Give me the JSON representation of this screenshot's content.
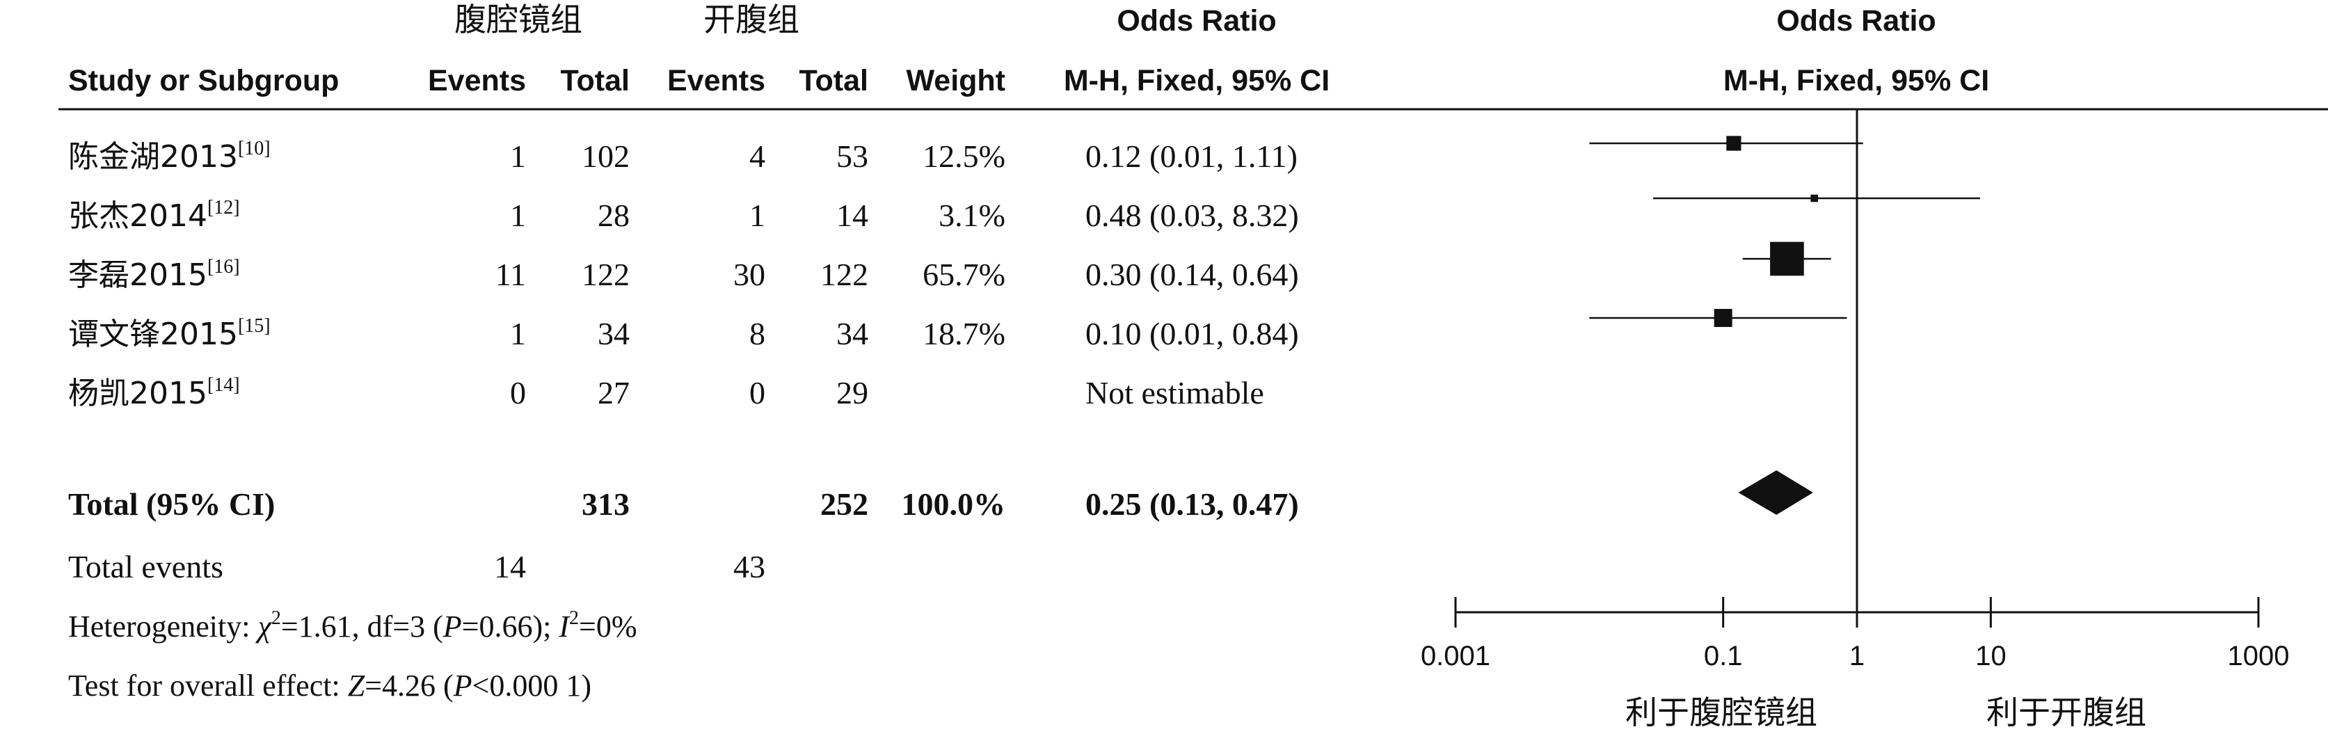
{
  "headers": {
    "group1_name": "腹腔镜组",
    "group2_name": "开腹组",
    "or_title": "Odds Ratio",
    "study": "Study or Subgroup",
    "events": "Events",
    "total": "Total",
    "weight": "Weight",
    "method": "M-H, Fixed, 95% CI",
    "plot_title": "Odds Ratio",
    "plot_method": "M-H, Fixed, 95% CI"
  },
  "studies": [
    {
      "name": "陈金湖2013",
      "ref": "[10]",
      "e1": "1",
      "t1": "102",
      "e2": "4",
      "t2": "53",
      "weight": "12.5%",
      "ci_text": "0.12 (0.01, 1.11)"
    },
    {
      "name": "张杰2014",
      "ref": "[12]",
      "e1": "1",
      "t1": "28",
      "e2": "1",
      "t2": "14",
      "weight": "3.1%",
      "ci_text": "0.48 (0.03, 8.32)"
    },
    {
      "name": "李磊2015",
      "ref": "[16]",
      "e1": "11",
      "t1": "122",
      "e2": "30",
      "t2": "122",
      "weight": "65.7%",
      "ci_text": "0.30 (0.14, 0.64)"
    },
    {
      "name": "谭文锋2015",
      "ref": "[15]",
      "e1": "1",
      "t1": "34",
      "e2": "8",
      "t2": "34",
      "weight": "18.7%",
      "ci_text": "0.10 (0.01, 0.84)"
    },
    {
      "name": "杨凯2015",
      "ref": "[14]",
      "e1": "0",
      "t1": "27",
      "e2": "0",
      "t2": "29",
      "weight": "",
      "ci_text": "Not estimable"
    }
  ],
  "total_row": {
    "label": "Total (95% CI)",
    "t1": "313",
    "t2": "252",
    "weight": "100.0%",
    "ci_text": "0.25 (0.13, 0.47)"
  },
  "total_events": {
    "label": "Total events",
    "e1": "14",
    "e2": "43"
  },
  "heterogeneity": {
    "prefix": "Heterogeneity: ",
    "chi_symbol": "χ",
    "chi_exp": "2",
    "chi_val": "=1.61, df=3 (",
    "p_symbol": "P",
    "p_val": "=0.66); ",
    "i_symbol": "I",
    "i_exp": "2",
    "i_val": "=0%"
  },
  "overall": {
    "prefix": "Test for overall effect: ",
    "z_symbol": "Z",
    "z_val": "=4.26 (",
    "p_symbol": "P",
    "p_val": "<0.000 1)"
  },
  "chart_data": {
    "type": "forest",
    "xscale": "log",
    "xlim": [
      0.001,
      1000
    ],
    "ticks": [
      0.001,
      0.1,
      1,
      10,
      1000
    ],
    "tick_labels": [
      "0.001",
      "0.1",
      "1",
      "10",
      "1000"
    ],
    "xlabel_left": "利于腹腔镜组",
    "xlabel_right": "利于开腹组",
    "points": [
      {
        "or": 0.12,
        "lo": 0.01,
        "hi": 1.11,
        "weight": 12.5
      },
      {
        "or": 0.48,
        "lo": 0.03,
        "hi": 8.32,
        "weight": 3.1
      },
      {
        "or": 0.3,
        "lo": 0.14,
        "hi": 0.64,
        "weight": 65.7
      },
      {
        "or": 0.1,
        "lo": 0.01,
        "hi": 0.84,
        "weight": 18.7
      }
    ],
    "pooled": {
      "or": 0.25,
      "lo": 0.13,
      "hi": 0.47
    }
  }
}
